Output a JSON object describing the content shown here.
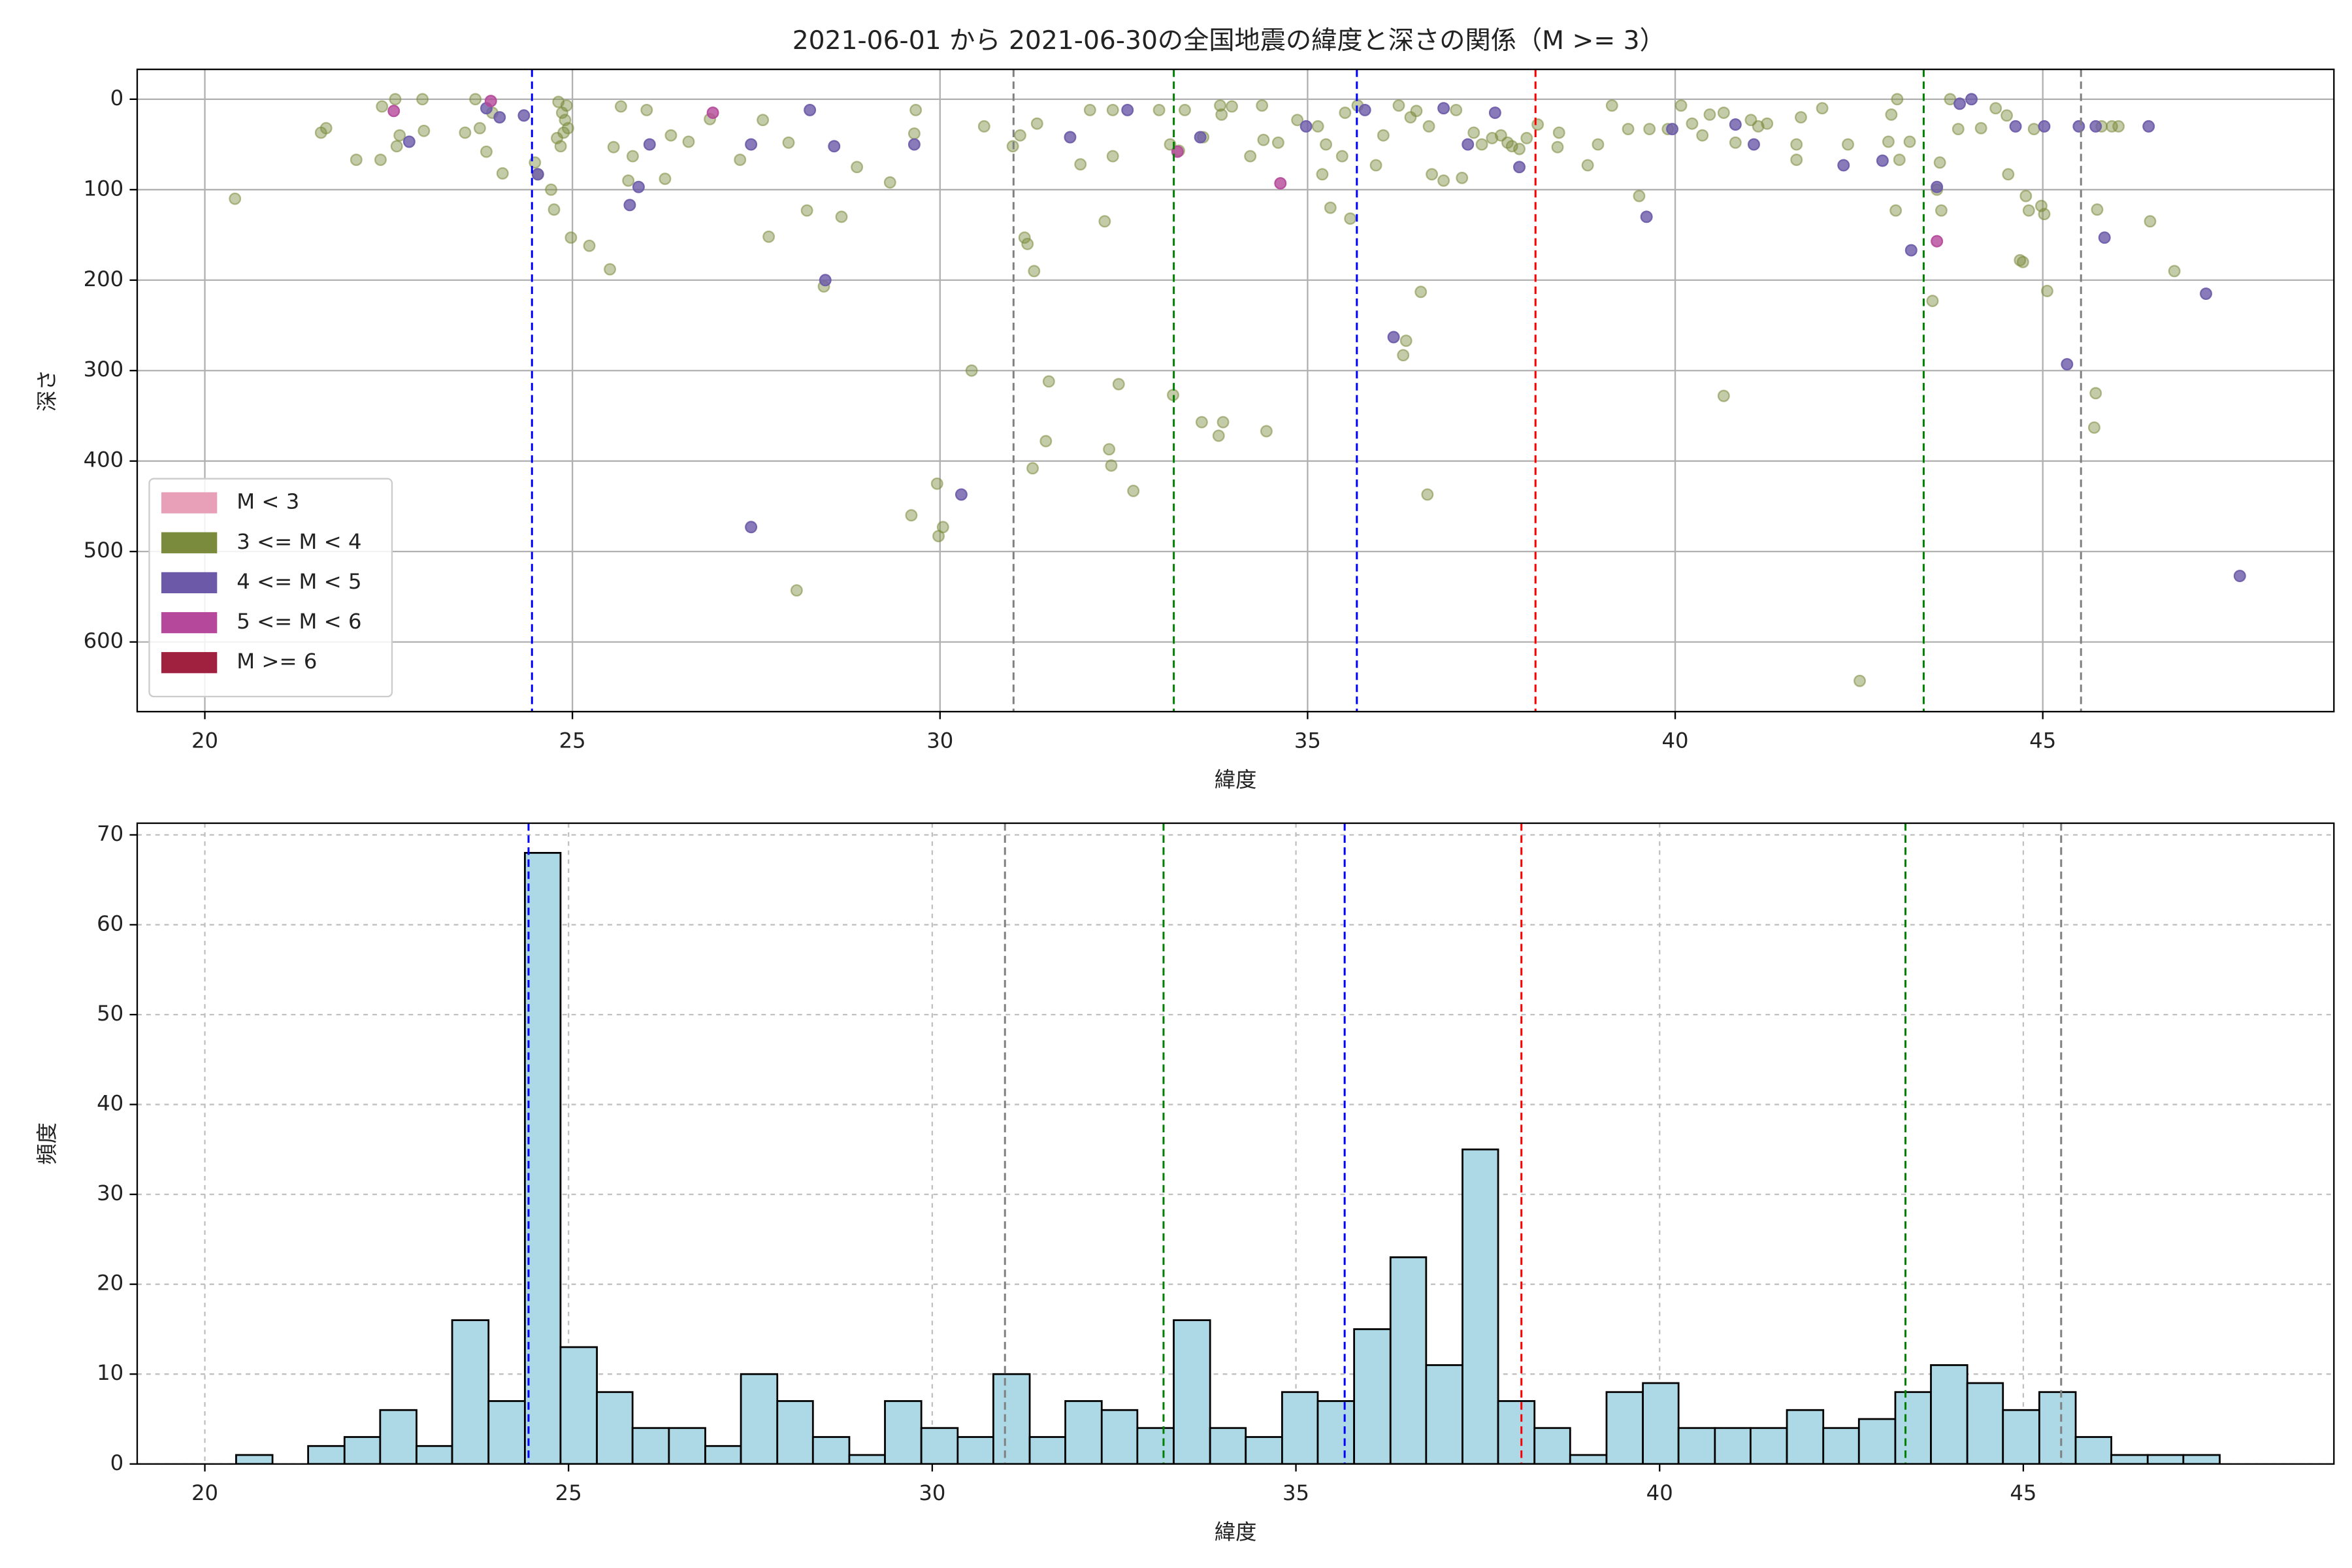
{
  "chart_data": [
    {
      "type": "scatter",
      "title": "2021-06-01 から 2021-06-30の全国地震の緯度と深さの関係（M >= 3）",
      "xlabel": "緯度",
      "ylabel": "深さ",
      "xlim": [
        19.08,
        48.96
      ],
      "ylim": [
        677,
        -33
      ],
      "xticks": [
        20,
        25,
        30,
        35,
        40,
        45
      ],
      "yticks": [
        0,
        100,
        200,
        300,
        400,
        500,
        600
      ],
      "grid": true,
      "grid_linestyle": "solid",
      "legend": "lower left",
      "vlines": [
        {
          "value": 24.45,
          "color": "#0000ff"
        },
        {
          "value": 31.0,
          "color": "#808080"
        },
        {
          "value": 33.18,
          "color": "#008000"
        },
        {
          "value": 35.67,
          "color": "#0000ff"
        },
        {
          "value": 38.1,
          "color": "#ff0000"
        },
        {
          "value": 43.38,
          "color": "#008000"
        },
        {
          "value": 45.52,
          "color": "#808080"
        }
      ],
      "series": [
        {
          "name": "M < 3",
          "color": "#e8a0b8",
          "x": [],
          "values": []
        },
        {
          "name": "3 <= M < 4",
          "color": "#7b8b3d",
          "x": [
            20.41,
            21.58,
            21.65,
            22.06,
            22.39,
            22.41,
            22.59,
            22.65,
            22.61,
            22.96,
            22.98,
            23.54,
            23.68,
            23.74,
            23.83,
            24.05,
            23.91,
            24.49,
            24.53,
            24.71,
            24.75,
            24.81,
            24.86,
            24.9,
            24.79,
            24.88,
            24.84,
            24.92,
            24.94,
            24.98,
            25.23,
            25.51,
            25.56,
            25.66,
            25.76,
            25.82,
            26.01,
            26.26,
            26.34,
            26.58,
            26.87,
            27.28,
            27.59,
            27.67,
            27.94,
            28.19,
            28.42,
            28.66,
            28.05,
            28.87,
            29.32,
            29.61,
            29.65,
            29.67,
            29.96,
            30.04,
            29.98,
            30.43,
            30.6,
            30.99,
            31.09,
            31.15,
            31.19,
            31.28,
            31.32,
            31.26,
            31.44,
            31.48,
            31.91,
            32.04,
            32.24,
            32.3,
            32.33,
            32.35,
            32.35,
            32.43,
            32.63,
            32.98,
            33.13,
            33.17,
            33.25,
            33.33,
            33.56,
            33.58,
            33.81,
            33.79,
            33.85,
            33.83,
            33.97,
            34.22,
            34.38,
            34.44,
            34.4,
            34.6,
            34.86,
            35.14,
            35.2,
            35.25,
            35.31,
            35.47,
            35.51,
            35.58,
            35.68,
            35.93,
            36.03,
            36.24,
            36.3,
            36.34,
            36.4,
            36.48,
            36.54,
            36.63,
            36.65,
            36.69,
            36.85,
            37.02,
            37.1,
            37.26,
            37.37,
            37.51,
            37.63,
            37.72,
            37.78,
            37.88,
            37.98,
            38.13,
            38.4,
            38.42,
            38.81,
            38.95,
            39.14,
            39.36,
            39.51,
            39.65,
            39.9,
            40.08,
            40.23,
            40.37,
            40.47,
            40.66,
            40.66,
            40.82,
            41.03,
            41.13,
            41.25,
            41.65,
            41.71,
            41.65,
            42.0,
            42.35,
            42.51,
            42.9,
            42.94,
            43.02,
            43.05,
            43.0,
            43.19,
            43.5,
            43.6,
            43.56,
            43.62,
            43.74,
            43.85,
            44.16,
            44.36,
            44.51,
            44.53,
            44.77,
            44.81,
            44.98,
            44.69,
            44.73,
            45.02,
            44.88,
            45.06,
            45.72,
            45.7,
            45.74,
            45.8,
            45.94,
            46.46,
            46.79,
            46.03
          ],
          "values": [
            110,
            37,
            32,
            67,
            67,
            8,
            0,
            40,
            52,
            0,
            35,
            37,
            0,
            32,
            58,
            82,
            15,
            70,
            83,
            100,
            122,
            3,
            15,
            23,
            43,
            37,
            52,
            7,
            32,
            153,
            162,
            188,
            53,
            8,
            90,
            63,
            12,
            88,
            40,
            47,
            22,
            67,
            23,
            152,
            48,
            123,
            207,
            130,
            543,
            75,
            92,
            460,
            38,
            12,
            425,
            473,
            483,
            300,
            30,
            52,
            40,
            153,
            160,
            190,
            27,
            408,
            378,
            312,
            72,
            12,
            135,
            387,
            405,
            12,
            63,
            315,
            433,
            12,
            50,
            327,
            57,
            12,
            357,
            42,
            7,
            372,
            357,
            17,
            8,
            63,
            7,
            367,
            45,
            48,
            23,
            30,
            83,
            50,
            120,
            63,
            15,
            132,
            7,
            73,
            40,
            7,
            283,
            267,
            20,
            13,
            213,
            437,
            30,
            83,
            90,
            12,
            87,
            37,
            50,
            43,
            40,
            48,
            52,
            55,
            43,
            28,
            53,
            37,
            73,
            50,
            7,
            33,
            107,
            33,
            33,
            7,
            27,
            40,
            17,
            328,
            15,
            48,
            23,
            30,
            27,
            50,
            20,
            67,
            10,
            50,
            643,
            47,
            17,
            0,
            67,
            123,
            47,
            223,
            70,
            100,
            123,
            0,
            33,
            32,
            10,
            18,
            83,
            107,
            123,
            118,
            178,
            180,
            127,
            33,
            212,
            325,
            363,
            122,
            30,
            30,
            135,
            190,
            30
          ]
        },
        {
          "name": "4 <= M < 5",
          "color": "#6c5aa8",
          "x": [
            22.78,
            23.83,
            24.01,
            24.34,
            24.53,
            25.78,
            25.9,
            26.05,
            27.43,
            27.43,
            28.23,
            28.44,
            28.56,
            29.65,
            30.29,
            31.77,
            32.55,
            33.54,
            34.98,
            35.78,
            36.17,
            36.85,
            37.18,
            37.55,
            37.88,
            39.96,
            39.61,
            40.82,
            41.07,
            42.29,
            42.82,
            43.21,
            43.56,
            43.87,
            44.03,
            44.63,
            45.02,
            45.49,
            45.72,
            45.33,
            45.84,
            46.44,
            47.22,
            47.68
          ],
          "values": [
            47,
            10,
            20,
            18,
            83,
            117,
            97,
            50,
            50,
            473,
            12,
            200,
            52,
            50,
            437,
            42,
            12,
            42,
            30,
            12,
            263,
            10,
            50,
            15,
            75,
            33,
            130,
            28,
            50,
            73,
            68,
            167,
            97,
            5,
            0,
            30,
            30,
            30,
            30,
            293,
            153,
            30,
            215,
            527
          ]
        },
        {
          "name": "5 <= M < 6",
          "color": "#b5489a",
          "x": [
            22.57,
            23.89,
            26.91,
            33.23,
            34.63,
            43.56
          ],
          "values": [
            13,
            2,
            15,
            58,
            93,
            157
          ]
        },
        {
          "name": "M >= 6",
          "color": "#a0203f",
          "x": [],
          "values": []
        }
      ]
    },
    {
      "type": "histogram",
      "xlabel": "緯度",
      "ylabel": "頻度",
      "xlim": [
        19.07,
        49.27
      ],
      "ylim": [
        0,
        71.3
      ],
      "xticks": [
        20,
        25,
        30,
        35,
        40,
        45
      ],
      "yticks": [
        0,
        10,
        20,
        30,
        40,
        50,
        60,
        70
      ],
      "grid": true,
      "grid_linestyle": "dashed",
      "color": "#add8e6",
      "edgecolor": "#000000",
      "vlines": [
        {
          "value": 24.45,
          "color": "#0000ff"
        },
        {
          "value": 31.0,
          "color": "#808080"
        },
        {
          "value": 33.18,
          "color": "#008000"
        },
        {
          "value": 35.67,
          "color": "#0000ff"
        },
        {
          "value": 38.1,
          "color": "#ff0000"
        },
        {
          "value": 43.38,
          "color": "#008000"
        },
        {
          "value": 45.52,
          "color": "#808080"
        }
      ],
      "bins": [
        20.43,
        20.93,
        21.42,
        21.92,
        22.41,
        22.91,
        23.4,
        23.9,
        24.4,
        24.89,
        25.39,
        25.88,
        26.38,
        26.88,
        27.37,
        27.87,
        28.36,
        28.86,
        29.35,
        29.85,
        30.35,
        30.84,
        31.34,
        31.83,
        32.33,
        32.82,
        33.32,
        33.82,
        34.31,
        34.81,
        35.3,
        35.8,
        36.3,
        36.79,
        37.29,
        37.78,
        38.28,
        38.77,
        39.27,
        39.77,
        40.26,
        40.76,
        41.25,
        41.75,
        42.25,
        42.74,
        43.24,
        43.73,
        44.23,
        44.72,
        45.22,
        45.72,
        46.21,
        46.71,
        47.2,
        47.7
      ],
      "values": [
        1,
        0,
        2,
        3,
        6,
        2,
        16,
        7,
        68,
        13,
        8,
        4,
        4,
        2,
        10,
        7,
        3,
        1,
        7,
        4,
        3,
        10,
        3,
        7,
        6,
        4,
        16,
        4,
        3,
        8,
        7,
        15,
        23,
        11,
        35,
        7,
        4,
        1,
        8,
        9,
        4,
        4,
        4,
        6,
        4,
        5,
        8,
        11,
        9,
        6,
        8,
        3,
        1,
        1,
        1
      ]
    }
  ]
}
